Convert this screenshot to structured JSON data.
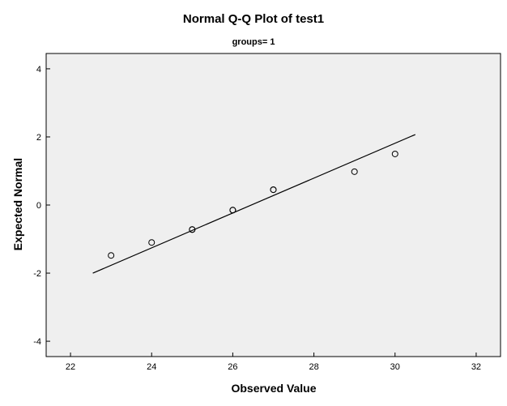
{
  "chart_data": {
    "type": "scatter",
    "title": "Normal Q-Q Plot of test1",
    "subtitle": "groups= 1",
    "xlabel": "Observed Value",
    "ylabel": "Expected Normal",
    "xlim": [
      21.4,
      32.6
    ],
    "ylim": [
      -4.45,
      4.45
    ],
    "xticks": [
      "22",
      "24",
      "26",
      "28",
      "30",
      "32"
    ],
    "yticks": [
      "4",
      "2",
      "0",
      "-2",
      "-4"
    ],
    "xtick_values": [
      22,
      24,
      26,
      28,
      30,
      32
    ],
    "ytick_values": [
      4,
      2,
      0,
      -2,
      -4
    ],
    "grid": false,
    "plot_background": "#efefef",
    "marker": "open-circle",
    "points": [
      {
        "x": 23,
        "y": -1.48
      },
      {
        "x": 24,
        "y": -1.1
      },
      {
        "x": 25,
        "y": -0.72
      },
      {
        "x": 25,
        "y": -0.72
      },
      {
        "x": 26,
        "y": -0.15
      },
      {
        "x": 26,
        "y": -0.15
      },
      {
        "x": 27,
        "y": 0.45
      },
      {
        "x": 27,
        "y": 0.45
      },
      {
        "x": 29,
        "y": 0.98
      },
      {
        "x": 30,
        "y": 1.5
      }
    ],
    "reference_line": {
      "x1": 22.55,
      "y1": -2.0,
      "x2": 30.5,
      "y2": 2.07
    }
  }
}
